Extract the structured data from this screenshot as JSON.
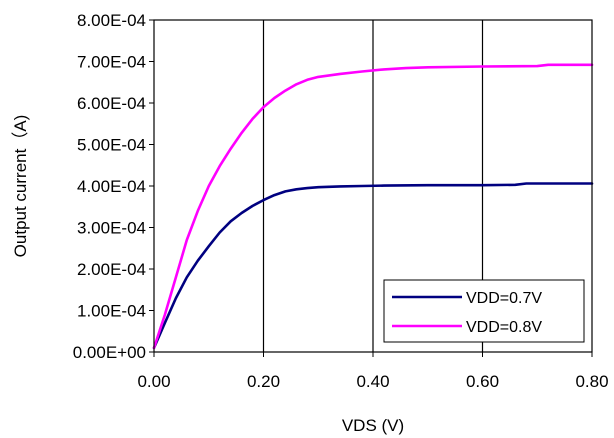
{
  "chart_data": {
    "type": "line",
    "title": "",
    "xlabel": "VDS (V)",
    "ylabel": "Output current（A)",
    "xlim": [
      0,
      0.8
    ],
    "ylim": [
      0,
      0.0008
    ],
    "x_ticks": [
      0,
      0.2,
      0.4,
      0.6,
      0.8
    ],
    "x_tick_labels": [
      "0.00",
      "0.20",
      "0.40",
      "0.60",
      "0.80"
    ],
    "y_ticks": [
      0,
      0.0001,
      0.0002,
      0.0003,
      0.0004,
      0.0005,
      0.0006,
      0.0007,
      0.0008
    ],
    "y_tick_labels": [
      "0.00E+00",
      "1.00E-04",
      "2.00E-04",
      "3.00E-04",
      "4.00E-04",
      "5.00E-04",
      "6.00E-04",
      "7.00E-04",
      "8.00E-04"
    ],
    "grid": "vertical",
    "legend_position": "bottom-right",
    "series": [
      {
        "name": "VDD=0.7V",
        "color": "#000080",
        "x": [
          0,
          0.02,
          0.04,
          0.06,
          0.08,
          0.1,
          0.12,
          0.14,
          0.16,
          0.18,
          0.2,
          0.22,
          0.24,
          0.26,
          0.28,
          0.3,
          0.34,
          0.38,
          0.42,
          0.5,
          0.6,
          0.66,
          0.68,
          0.72,
          0.8
        ],
        "y": [
          1e-05,
          7e-05,
          0.00013,
          0.00018,
          0.00022,
          0.000255,
          0.000288,
          0.000315,
          0.000335,
          0.000352,
          0.000366,
          0.000378,
          0.000387,
          0.000392,
          0.000395,
          0.000397,
          0.000399,
          0.0004,
          0.000401,
          0.000402,
          0.000402,
          0.000403,
          0.000406,
          0.000406,
          0.000406
        ]
      },
      {
        "name": "VDD=0.8V",
        "color": "#ff00ff",
        "x": [
          0,
          0.02,
          0.04,
          0.06,
          0.08,
          0.1,
          0.12,
          0.14,
          0.16,
          0.18,
          0.2,
          0.22,
          0.24,
          0.26,
          0.28,
          0.3,
          0.34,
          0.38,
          0.42,
          0.46,
          0.5,
          0.6,
          0.7,
          0.72,
          0.8
        ],
        "y": [
          1e-05,
          9e-05,
          0.00018,
          0.00027,
          0.00034,
          0.0004,
          0.000448,
          0.00049,
          0.000528,
          0.000562,
          0.00059,
          0.000612,
          0.00063,
          0.000645,
          0.000656,
          0.000663,
          0.00067,
          0.000676,
          0.000681,
          0.000684,
          0.000686,
          0.000688,
          0.000689,
          0.000692,
          0.000692
        ]
      }
    ]
  }
}
